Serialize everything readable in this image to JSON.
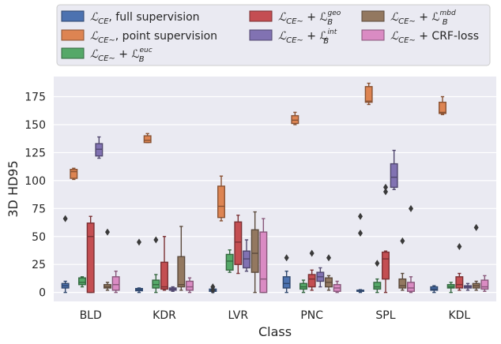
{
  "chart_data": {
    "type": "boxplot",
    "title": "",
    "xlabel": "Class",
    "ylabel": "3D HD95",
    "ylim": [
      -8,
      193
    ],
    "yticks": [
      0,
      25,
      50,
      75,
      100,
      125,
      150,
      175
    ],
    "categories": [
      "BLD",
      "KDR",
      "LVR",
      "PNC",
      "SPL",
      "KDL"
    ],
    "legend_location": "top",
    "series": [
      {
        "name": "full supervision",
        "legend_main": "ℒ",
        "legend_sub": "CE",
        "legend_suffix": ", full supervision",
        "color": "#4c72b0",
        "boxes": [
          {
            "whislo": 0,
            "q1": 4,
            "med": 6,
            "q3": 8,
            "whishi": 10,
            "fliers": [
              66
            ]
          },
          {
            "whislo": 0,
            "q1": 1.5,
            "med": 2.5,
            "q3": 3.5,
            "whishi": 4,
            "fliers": [
              45
            ]
          },
          {
            "whislo": 0,
            "q1": 1,
            "med": 1.5,
            "q3": 3,
            "whishi": 4,
            "fliers": [
              5,
              2
            ]
          },
          {
            "whislo": 0,
            "q1": 4,
            "med": 8,
            "q3": 14,
            "whishi": 19,
            "fliers": [
              31
            ]
          },
          {
            "whislo": 0,
            "q1": 1,
            "med": 1.5,
            "q3": 2,
            "whishi": 2.5,
            "fliers": [
              68,
              53
            ]
          },
          {
            "whislo": 0,
            "q1": 2,
            "med": 3,
            "q3": 5,
            "whishi": 6,
            "fliers": []
          }
        ]
      },
      {
        "name": "point supervision",
        "legend_main": "ℒ",
        "legend_sub": "CE~",
        "legend_suffix": ", point supervision",
        "color": "#dd8452",
        "boxes": [
          {
            "whislo": 101,
            "q1": 102,
            "med": 108,
            "q3": 110,
            "whishi": 111,
            "fliers": []
          },
          {
            "whislo": 134,
            "q1": 134,
            "med": 136,
            "q3": 140,
            "whishi": 142,
            "fliers": []
          },
          {
            "whislo": 64,
            "q1": 67,
            "med": 77,
            "q3": 95,
            "whishi": 104,
            "fliers": []
          },
          {
            "whislo": 150,
            "q1": 151,
            "med": 154,
            "q3": 158,
            "whishi": 161,
            "fliers": []
          },
          {
            "whislo": 168,
            "q1": 170,
            "med": 171,
            "q3": 184,
            "whishi": 187,
            "fliers": []
          },
          {
            "whislo": 159,
            "q1": 160,
            "med": 161,
            "q3": 170,
            "whishi": 175,
            "fliers": []
          }
        ]
      },
      {
        "name": "euc",
        "legend_main": "ℒ",
        "legend_sub": "CE~",
        "legend_suffix": " + ℒ",
        "legend_sup": "euc",
        "legend_bsub": "B",
        "color": "#55a868",
        "boxes": [
          {
            "whislo": 5,
            "q1": 7,
            "med": 9,
            "q3": 13,
            "whishi": 14,
            "fliers": []
          },
          {
            "whislo": 0,
            "q1": 4,
            "med": 7,
            "q3": 11,
            "whishi": 16,
            "fliers": [
              47
            ]
          },
          {
            "whislo": 18,
            "q1": 20,
            "med": 28,
            "q3": 34,
            "whishi": 38,
            "fliers": []
          },
          {
            "whislo": 0,
            "q1": 3,
            "med": 5,
            "q3": 8,
            "whishi": 11,
            "fliers": []
          },
          {
            "whislo": 0,
            "q1": 3,
            "med": 5,
            "q3": 9,
            "whishi": 12,
            "fliers": [
              26
            ]
          },
          {
            "whislo": 0,
            "q1": 4,
            "med": 5,
            "q3": 7,
            "whishi": 9,
            "fliers": []
          }
        ]
      },
      {
        "name": "geo",
        "legend_main": "ℒ",
        "legend_sub": "CE~",
        "legend_suffix": " + ℒ",
        "legend_sup": "geo",
        "legend_bsub": "B",
        "color": "#c44e52",
        "boxes": [
          {
            "whislo": 0,
            "q1": 0,
            "med": 50,
            "q3": 62,
            "whishi": 68,
            "fliers": []
          },
          {
            "whislo": 2,
            "q1": 3,
            "med": 5,
            "q3": 27,
            "whishi": 50,
            "fliers": []
          },
          {
            "whislo": 17,
            "q1": 25,
            "med": 45,
            "q3": 63,
            "whishi": 69,
            "fliers": []
          },
          {
            "whislo": 2,
            "q1": 5,
            "med": 12,
            "q3": 16,
            "whishi": 20,
            "fliers": [
              35
            ]
          },
          {
            "whislo": 0,
            "q1": 12,
            "med": 30,
            "q3": 36,
            "whishi": 37,
            "fliers": [
              94,
              90
            ]
          },
          {
            "whislo": 2,
            "q1": 4,
            "med": 7,
            "q3": 14,
            "whishi": 17,
            "fliers": [
              41
            ]
          }
        ]
      },
      {
        "name": "int",
        "legend_main": "ℒ",
        "legend_sub": "CE~",
        "legend_suffix": " + ℒ",
        "legend_sup": "int",
        "legend_bsub": "B",
        "color": "#8172b2",
        "boxes": [
          {
            "whislo": 120,
            "q1": 122,
            "med": 128,
            "q3": 133,
            "whishi": 139,
            "fliers": []
          },
          {
            "whislo": 1,
            "q1": 2,
            "med": 3,
            "q3": 4,
            "whishi": 5,
            "fliers": []
          },
          {
            "whislo": 19,
            "q1": 22,
            "med": 30,
            "q3": 37,
            "whishi": 47,
            "fliers": []
          },
          {
            "whislo": 5,
            "q1": 10,
            "med": 14,
            "q3": 18,
            "whishi": 22,
            "fliers": []
          },
          {
            "whislo": 92,
            "q1": 94,
            "med": 103,
            "q3": 115,
            "whishi": 127,
            "fliers": []
          },
          {
            "whislo": 2,
            "q1": 4,
            "med": 5,
            "q3": 6,
            "whishi": 8,
            "fliers": []
          }
        ]
      },
      {
        "name": "mbd",
        "legend_main": "ℒ",
        "legend_sub": "CE~",
        "legend_suffix": " + ℒ",
        "legend_sup": "mbd",
        "legend_bsub": "B",
        "color": "#937860",
        "boxes": [
          {
            "whislo": 2,
            "q1": 4,
            "med": 5,
            "q3": 7,
            "whishi": 9,
            "fliers": [
              54
            ]
          },
          {
            "whislo": 2,
            "q1": 5,
            "med": 7,
            "q3": 32,
            "whishi": 59,
            "fliers": []
          },
          {
            "whislo": 0,
            "q1": 18,
            "med": 35,
            "q3": 56,
            "whishi": 72,
            "fliers": []
          },
          {
            "whislo": 2,
            "q1": 5,
            "med": 9,
            "q3": 13,
            "whishi": 15,
            "fliers": [
              31
            ]
          },
          {
            "whislo": 2,
            "q1": 4,
            "med": 6,
            "q3": 12,
            "whishi": 17,
            "fliers": [
              46
            ]
          },
          {
            "whislo": 2,
            "q1": 4,
            "med": 6,
            "q3": 8,
            "whishi": 10,
            "fliers": [
              58
            ]
          }
        ]
      },
      {
        "name": "CRF-loss",
        "legend_main": "ℒ",
        "legend_sub": "CE~",
        "legend_suffix": " + CRF-loss",
        "color": "#da8bc3",
        "boxes": [
          {
            "whislo": 0,
            "q1": 2,
            "med": 7,
            "q3": 14,
            "whishi": 19,
            "fliers": []
          },
          {
            "whislo": 0,
            "q1": 2,
            "med": 5,
            "q3": 10,
            "whishi": 13,
            "fliers": []
          },
          {
            "whislo": 0,
            "q1": 0,
            "med": 12,
            "q3": 54,
            "whishi": 66,
            "fliers": []
          },
          {
            "whislo": 0,
            "q1": 1,
            "med": 4,
            "q3": 7,
            "whishi": 10,
            "fliers": []
          },
          {
            "whislo": 0,
            "q1": 1,
            "med": 4,
            "q3": 9,
            "whishi": 14,
            "fliers": [
              75
            ]
          },
          {
            "whislo": 1,
            "q1": 3,
            "med": 5,
            "q3": 11,
            "whishi": 15,
            "fliers": []
          }
        ]
      }
    ]
  }
}
